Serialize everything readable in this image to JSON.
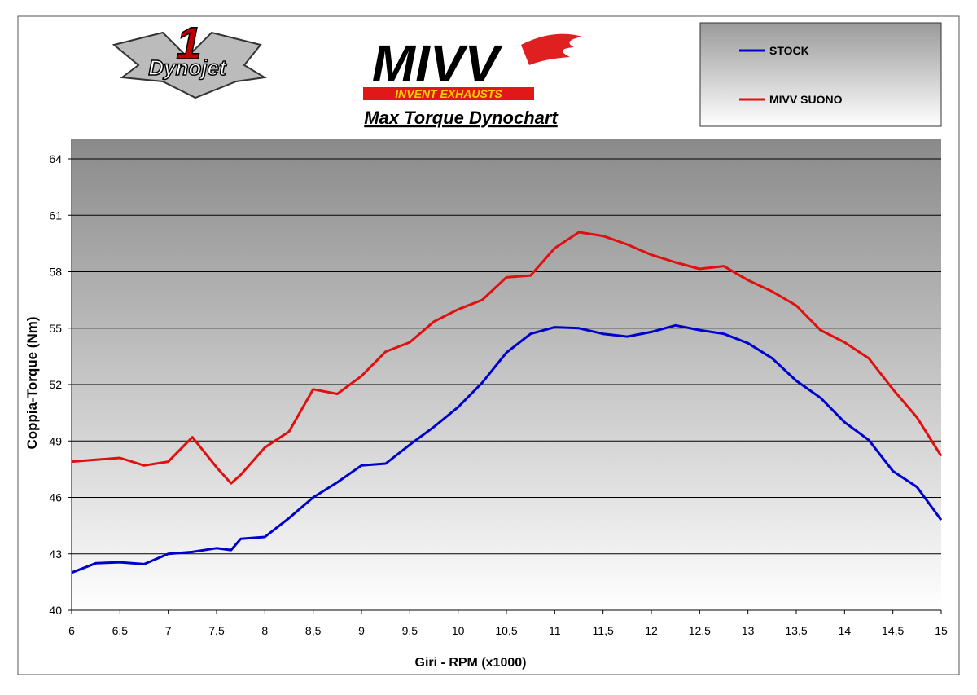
{
  "chart_data": {
    "type": "line",
    "title": "Max Torque Dynochart",
    "logos": {
      "dynojet": "Dynojet",
      "dynojet_number": "1",
      "mivv": "MIVV",
      "mivv_tagline": "INVENT EXHAUSTS"
    },
    "x_label": "Giri - RPM (x1000)",
    "y_label": "Coppia-Torque (Nm)",
    "x": [
      6,
      6.25,
      6.5,
      6.75,
      7,
      7.25,
      7.5,
      7.65,
      7.75,
      8,
      8.25,
      8.5,
      8.75,
      9,
      9.25,
      9.5,
      9.75,
      10,
      10.25,
      10.5,
      10.75,
      11,
      11.25,
      11.5,
      11.75,
      12,
      12.25,
      12.5,
      12.75,
      13,
      13.25,
      13.5,
      13.75,
      14,
      14.25,
      14.5,
      14.75,
      15
    ],
    "series": [
      {
        "name": "STOCK",
        "color": "#0000cc",
        "values": [
          42.0,
          42.5,
          42.55,
          42.45,
          43.0,
          43.1,
          43.3,
          43.2,
          43.8,
          43.9,
          44.9,
          46.0,
          46.8,
          47.7,
          47.8,
          48.8,
          49.75,
          50.8,
          52.1,
          53.7,
          54.7,
          55.05,
          55.0,
          54.7,
          54.55,
          54.8,
          55.15,
          54.9,
          54.7,
          54.2,
          53.4,
          52.2,
          51.3,
          50.0,
          49.05,
          47.4,
          46.55,
          44.8
        ]
      },
      {
        "name": "MIVV SUONO",
        "color": "#e01010",
        "values": [
          47.9,
          48.0,
          48.1,
          47.7,
          47.9,
          49.2,
          47.6,
          46.75,
          47.2,
          48.65,
          49.5,
          51.75,
          51.5,
          52.45,
          53.75,
          54.25,
          55.35,
          56.0,
          56.5,
          57.7,
          57.8,
          59.25,
          60.1,
          59.9,
          59.45,
          58.9,
          58.5,
          58.15,
          58.3,
          57.55,
          56.95,
          56.2,
          54.9,
          54.25,
          53.4,
          51.75,
          50.25,
          48.2
        ]
      }
    ],
    "xlim": [
      6,
      15
    ],
    "xticks": [
      6,
      {
        "value": 6.5,
        "label": "6,5"
      },
      7,
      {
        "value": 7.5,
        "label": "7,5"
      },
      8,
      {
        "value": 8.5,
        "label": "8,5"
      },
      9,
      {
        "value": 9.5,
        "label": "9,5"
      },
      10,
      {
        "value": 10.5,
        "label": "10,5"
      },
      11,
      {
        "value": 11.5,
        "label": "11,5"
      },
      12,
      {
        "value": 12.5,
        "label": "12,5"
      },
      13,
      {
        "value": 13.5,
        "label": "13,5"
      },
      14,
      {
        "value": 14.5,
        "label": "14,5"
      },
      15
    ],
    "ylim": [
      40,
      64
    ],
    "yticks": [
      40,
      43,
      46,
      49,
      52,
      55,
      58,
      61,
      64
    ],
    "grid": true
  }
}
